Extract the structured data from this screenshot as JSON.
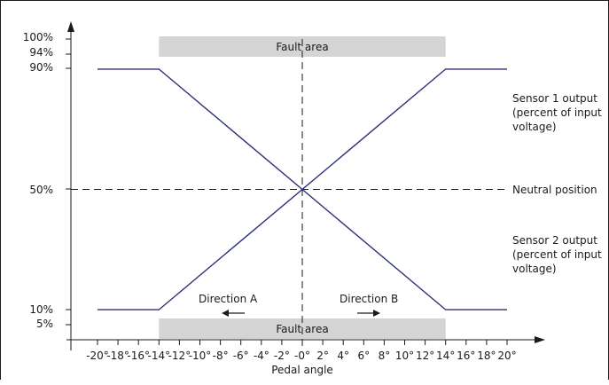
{
  "chart_data": {
    "type": "line",
    "xlabel": "Pedal angle",
    "ylabel": "",
    "xlim": [
      -20,
      20
    ],
    "x_ticks": [
      -20,
      -18,
      -16,
      -14,
      -12,
      -10,
      -8,
      -6,
      -4,
      -2,
      0,
      2,
      4,
      6,
      8,
      10,
      12,
      14,
      16,
      18,
      20
    ],
    "x_tick_labels": [
      "-20°",
      "-18°",
      "-16°",
      "-14°",
      "-12°",
      "-10°",
      "-8°",
      "-6°",
      "-4°",
      "-2°",
      "-0°",
      "2°",
      "4°",
      "6°",
      "8°",
      "10°",
      "12°",
      "14°",
      "16°",
      "18°",
      "20°"
    ],
    "ylim": [
      0,
      100
    ],
    "y_ticks": [
      100,
      94,
      90,
      50,
      10,
      5
    ],
    "y_tick_labels": [
      "100%",
      "94%",
      "90%",
      "50%",
      "10%",
      "5%"
    ],
    "series": [
      {
        "name": "Sensor 1 output (percent of input voltage)",
        "x": [
          -20,
          -14,
          14,
          20
        ],
        "y": [
          10,
          10,
          90,
          90
        ]
      },
      {
        "name": "Sensor 2 output (percent of input voltage)",
        "x": [
          -20,
          -14,
          14,
          20
        ],
        "y": [
          90,
          90,
          10,
          10
        ]
      }
    ],
    "fault_areas": [
      {
        "label": "Fault area",
        "x_range": [
          -14,
          14
        ],
        "y_range": [
          94,
          100
        ]
      },
      {
        "label": "Fault area",
        "x_range": [
          -14,
          14
        ],
        "y_range": [
          0,
          5
        ]
      }
    ],
    "neutral_line": {
      "y": 50,
      "label": "Neutral position"
    },
    "direction_a": "Direction A",
    "direction_b": "Direction B",
    "sensor1_label": [
      "Sensor 1 output",
      "(percent of input",
      "voltage)"
    ],
    "sensor2_label": [
      "Sensor 2 output",
      "(percent of input",
      "voltage)"
    ],
    "colors": {
      "line": "#2b2e7a",
      "fault": "#d4d4d4",
      "axis": "#1a1a1a",
      "text": "#1a1a1a"
    }
  }
}
